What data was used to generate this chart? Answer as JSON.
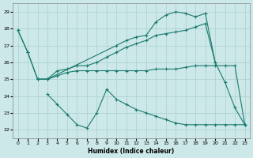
{
  "xlabel": "Humidex (Indice chaleur)",
  "bg_color": "#cce8e8",
  "line_color": "#1a7a6e",
  "grid_color": "#aacfcf",
  "ylim": [
    21.5,
    29.5
  ],
  "xlim": [
    -0.5,
    23.5
  ],
  "yticks": [
    22,
    23,
    24,
    25,
    26,
    27,
    28,
    29
  ],
  "xticks": [
    0,
    1,
    2,
    3,
    4,
    5,
    6,
    7,
    8,
    9,
    10,
    11,
    12,
    13,
    14,
    15,
    16,
    17,
    18,
    19,
    20,
    21,
    22,
    23
  ],
  "line1_x": [
    0,
    1,
    2,
    3,
    4,
    5,
    6,
    7,
    8,
    9,
    10,
    11,
    12,
    13,
    14,
    15,
    16,
    17,
    18,
    19,
    20,
    21,
    22,
    23
  ],
  "line1_y": [
    27.9,
    26.6,
    25.0,
    25.0,
    25.2,
    25.4,
    25.5,
    25.5,
    25.5,
    25.5,
    25.5,
    25.5,
    25.5,
    25.5,
    25.6,
    25.6,
    25.6,
    25.7,
    25.8,
    25.8,
    25.8,
    25.8,
    25.8,
    22.3
  ],
  "line2_x": [
    0,
    1,
    2,
    3,
    10,
    11,
    12,
    13,
    14,
    15,
    16,
    17,
    18,
    19,
    20,
    21,
    22,
    23
  ],
  "line2_y": [
    27.9,
    26.6,
    25.0,
    25.0,
    27.0,
    27.3,
    27.5,
    27.6,
    28.4,
    28.8,
    29.0,
    28.9,
    28.7,
    28.9,
    26.0,
    24.8,
    23.3,
    22.3
  ],
  "line3_x": [
    2,
    3,
    4,
    5,
    6,
    7,
    8,
    9,
    10,
    11,
    12,
    13,
    14,
    15,
    16,
    17,
    18,
    19,
    20
  ],
  "line3_y": [
    25.0,
    25.0,
    25.5,
    25.6,
    25.8,
    25.8,
    26.0,
    26.3,
    26.6,
    26.9,
    27.1,
    27.3,
    27.6,
    27.7,
    27.8,
    27.9,
    28.1,
    28.3,
    26.0
  ],
  "line4_x": [
    3,
    4,
    5,
    6,
    7,
    8,
    9,
    10,
    11,
    12,
    13,
    14,
    15,
    16,
    17,
    18,
    19,
    20,
    21,
    22,
    23
  ],
  "line4_y": [
    24.1,
    23.5,
    22.9,
    22.3,
    22.1,
    23.0,
    24.4,
    23.8,
    23.5,
    23.2,
    23.0,
    22.8,
    22.6,
    22.4,
    22.3,
    22.3,
    22.3,
    22.3,
    22.3,
    22.3,
    22.3
  ]
}
